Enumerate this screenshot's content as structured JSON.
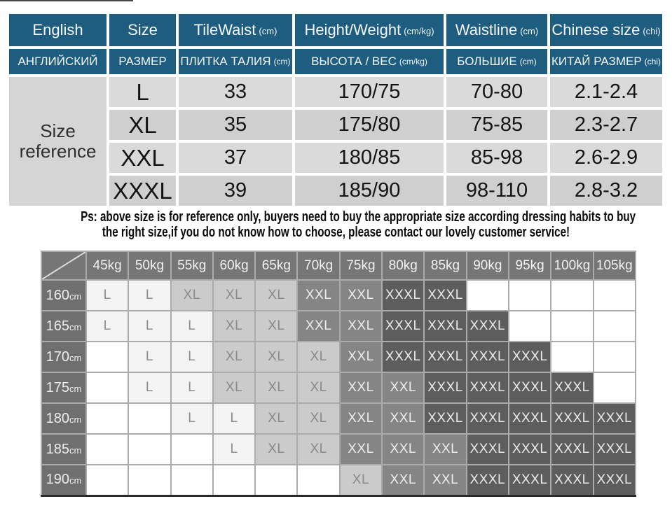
{
  "note": {
    "line1": "Ps: above size is for reference only, buyers need to buy the appropriate size according dressing habits to buy",
    "line2": "the right size,if you do not know how to choose, please contact our lovely customer service!"
  },
  "colors": {
    "header_blue": "#1e5c80",
    "ref_row_light": "#dadada",
    "ref_row_dark": "#cfcfcf",
    "ref_side_cell": "#d5d5d5",
    "matrix_header_bg": "#767676",
    "matrix_row_label_bg": "#6f6f6f"
  },
  "chart_data": [
    {
      "type": "table",
      "side_label": "Size\nreference",
      "columns_english": [
        {
          "label": "English",
          "unit": ""
        },
        {
          "label": "Size",
          "unit": ""
        },
        {
          "label": "TileWaist",
          "unit": "(cm)"
        },
        {
          "label": "Height/Weight",
          "unit": "(cm/kg)"
        },
        {
          "label": "Waistline",
          "unit": "(cm)"
        },
        {
          "label": "Chinese size",
          "unit": "(chi)"
        }
      ],
      "columns_russian": [
        {
          "label": "АНГЛИЙСКИЙ",
          "unit": ""
        },
        {
          "label": "РАЗМЕР",
          "unit": ""
        },
        {
          "label": "ПЛИТКА ТАЛИЯ",
          "unit": "(cm)"
        },
        {
          "label": "ВЫСОТА / ВЕС",
          "unit": "(cm/kg)"
        },
        {
          "label": "БОЛЬШИЕ",
          "unit": "(cm)"
        },
        {
          "label": "КИТАЙ РАЗМЕР",
          "unit": "(chi)"
        }
      ],
      "rows": [
        {
          "size": "L",
          "tile_waist": "33",
          "height_weight": "170/75",
          "waistline": "70-80",
          "chinese_size": "2.1-2.4"
        },
        {
          "size": "XL",
          "tile_waist": "35",
          "height_weight": "175/80",
          "waistline": "75-85",
          "chinese_size": "2.3-2.7"
        },
        {
          "size": "XXL",
          "tile_waist": "37",
          "height_weight": "180/85",
          "waistline": "85-98",
          "chinese_size": "2.6-2.9"
        },
        {
          "size": "XXXL",
          "tile_waist": "39",
          "height_weight": "185/90",
          "waistline": "98-110",
          "chinese_size": "2.8-3.2"
        }
      ]
    },
    {
      "type": "heatmap",
      "x_labels": [
        "45kg",
        "50kg",
        "55kg",
        "60kg",
        "65kg",
        "70kg",
        "75kg",
        "80kg",
        "85kg",
        "90kg",
        "95kg",
        "100kg",
        "105kg"
      ],
      "y_labels": [
        "160cm",
        "165cm",
        "170cm",
        "175cm",
        "180cm",
        "185cm",
        "190cm"
      ],
      "values": [
        [
          "L",
          "L",
          "XL",
          "XL",
          "XL",
          "XXL",
          "XXL",
          "XXXL",
          "XXXL",
          "",
          "",
          "",
          ""
        ],
        [
          "L",
          "L",
          "L",
          "XL",
          "XL",
          "XXL",
          "XXL",
          "XXXL",
          "XXXL",
          "XXXL",
          "",
          "",
          ""
        ],
        [
          "",
          "L",
          "L",
          "XL",
          "XL",
          "XL",
          "XXL",
          "XXXL",
          "XXXL",
          "XXXL",
          "XXXL",
          "",
          ""
        ],
        [
          "",
          "L",
          "L",
          "XL",
          "XL",
          "XL",
          "XXL",
          "XXL",
          "XXXL",
          "XXXL",
          "XXXL",
          "XXXL",
          ""
        ],
        [
          "",
          "",
          "L",
          "L",
          "XL",
          "XL",
          "XXL",
          "XXL",
          "XXXL",
          "XXXL",
          "XXXL",
          "XXXL",
          "XXXL"
        ],
        [
          "",
          "",
          "",
          "L",
          "XL",
          "XL",
          "XXL",
          "XXL",
          "XXL",
          "XXXL",
          "XXXL",
          "XXXL",
          "XXXL"
        ],
        [
          "",
          "",
          "",
          "",
          "",
          "",
          "XL",
          "XXL",
          "XXL",
          "XXXL",
          "XXXL",
          "XXXL",
          "XXXL"
        ]
      ],
      "cell_styles": {
        "L": {
          "bg": "#f3f3f3",
          "fg": "#8d8d8d"
        },
        "XL": {
          "bg": "#cbcbcb",
          "fg": "#8a8a8a"
        },
        "XXL": {
          "bg": "#858585",
          "fg": "#ececec"
        },
        "XXXL": {
          "bg": "#5d5d5d",
          "fg": "#e9e9e9"
        },
        "empty": {
          "bg": "#ffffff",
          "fg": "#8d8d8d"
        }
      }
    }
  ]
}
